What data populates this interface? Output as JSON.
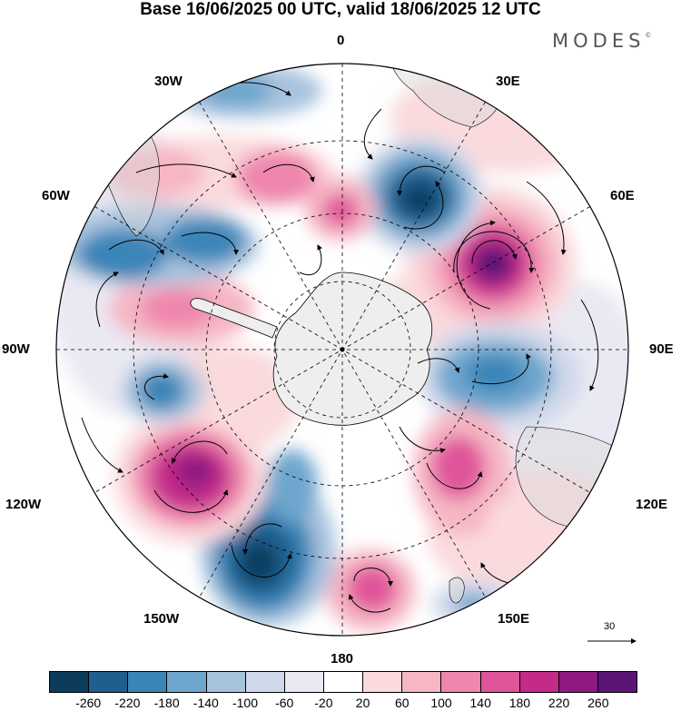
{
  "title": "Base 16/06/2025 00 UTC, valid 18/06/2025 12 UTC",
  "brand": "MODES",
  "brand_mark": "©",
  "meridian_labels": {
    "top": "0",
    "bottom": "180",
    "left": "90W",
    "right": "90E",
    "w30": "30W",
    "e30": "30E",
    "w60": "60W",
    "e60": "60E",
    "w120": "120W",
    "e120": "120E",
    "w150": "150W",
    "e150": "150E"
  },
  "vector_scale_label": "30",
  "colorbar": {
    "colors": [
      "#0d3b5c",
      "#1e5f8e",
      "#3a85b8",
      "#6ea6cd",
      "#a8c3de",
      "#cfd8ea",
      "#e9e9f3",
      "#ffffff",
      "#fadadd",
      "#f6b6c4",
      "#ef86ad",
      "#e0559a",
      "#c42a8a",
      "#8e1a80",
      "#5b1577"
    ],
    "ticks": [
      "-260",
      "-220",
      "-180",
      "-140",
      "-100",
      "-60",
      "-20",
      "20",
      "60",
      "100",
      "140",
      "180",
      "220",
      "260"
    ]
  },
  "map": {
    "background_color": "#ffffff",
    "antarctica_color": "#eeeeee",
    "land_color": "#d9d9d9",
    "outline_color": "#000000"
  }
}
